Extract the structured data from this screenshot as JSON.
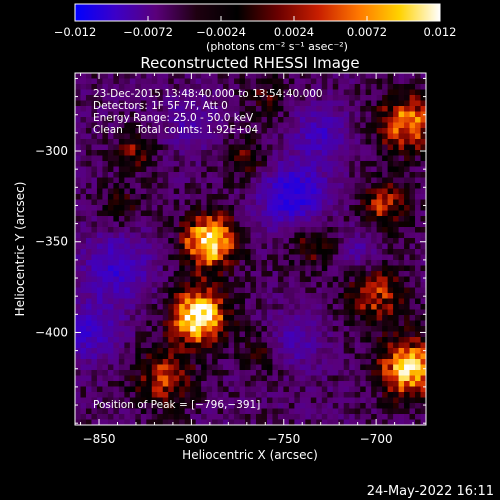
{
  "chart_data": {
    "type": "heatmap",
    "title": "Reconstructed RHESSI Image",
    "xlabel": "Heliocentric X (arcsec)",
    "ylabel": "Heliocentric Y (arcsec)",
    "xlim": [
      -863,
      -673
    ],
    "ylim": [
      -451,
      -257
    ],
    "xticks": [
      -850,
      -800,
      -750,
      -700
    ],
    "xtick_labels": [
      "−850",
      "−800",
      "−750",
      "−700"
    ],
    "yticks": [
      -300,
      -350,
      -400
    ],
    "ytick_labels": [
      "−300",
      "−350",
      "−400"
    ],
    "colorbar": {
      "range": [
        -0.012,
        0.012
      ],
      "ticks": [
        -0.012,
        -0.0072,
        -0.0024,
        0.0024,
        0.0072,
        0.012
      ],
      "tick_labels": [
        "−0.012",
        "−0.0072",
        "−0.0024",
        "0.0024",
        "0.0072",
        "0.012"
      ],
      "unit_label": "(photons cm⁻² s⁻¹ asec⁻²)",
      "colormap": [
        "#0000ff",
        "#3c00c8",
        "#5a007a",
        "#1e0010",
        "#000000",
        "#6a0000",
        "#c81e00",
        "#ff7800",
        "#ffd200",
        "#ffffff"
      ]
    },
    "annotations": [
      "23-Dec-2015 13:48:40.000 to 13:54:40.000",
      "Detectors: 1F 5F 7F, Att 0",
      "Energy Range: 25.0 - 50.0 keV",
      "Clean    Total counts: 1.92E+04"
    ],
    "peak_label": "Position of Peak = [−796,−391]",
    "peak": [
      -796,
      -391
    ],
    "sources": [
      {
        "x": -790,
        "y": -350,
        "sigma": 11,
        "amp": 1.0
      },
      {
        "x": -796,
        "y": -391,
        "sigma": 11,
        "amp": 1.05
      },
      {
        "x": -815,
        "y": -425,
        "sigma": 12,
        "amp": 0.55
      },
      {
        "x": -830,
        "y": -300,
        "sigma": 8,
        "amp": 0.45
      },
      {
        "x": -838,
        "y": -330,
        "sigma": 8,
        "amp": 0.35
      },
      {
        "x": -770,
        "y": -305,
        "sigma": 9,
        "amp": 0.4
      },
      {
        "x": -683,
        "y": -285,
        "sigma": 12,
        "amp": 0.75
      },
      {
        "x": -695,
        "y": -330,
        "sigma": 10,
        "amp": 0.55
      },
      {
        "x": -700,
        "y": -380,
        "sigma": 12,
        "amp": 0.55
      },
      {
        "x": -682,
        "y": -420,
        "sigma": 12,
        "amp": 0.9
      },
      {
        "x": -735,
        "y": -350,
        "sigma": 10,
        "amp": 0.45
      },
      {
        "x": -760,
        "y": -410,
        "sigma": 9,
        "amp": 0.35
      },
      {
        "x": -760,
        "y": -270,
        "sigma": 9,
        "amp": 0.3
      }
    ],
    "wells": [
      {
        "x": -745,
        "y": -325,
        "sigma": 13,
        "amp": 0.8
      },
      {
        "x": -730,
        "y": -290,
        "sigma": 10,
        "amp": 0.5
      },
      {
        "x": -840,
        "y": -365,
        "sigma": 13,
        "amp": 0.6
      },
      {
        "x": -855,
        "y": -400,
        "sigma": 11,
        "amp": 0.55
      },
      {
        "x": -745,
        "y": -405,
        "sigma": 10,
        "amp": 0.45
      },
      {
        "x": -800,
        "y": -285,
        "sigma": 10,
        "amp": 0.35
      },
      {
        "x": -710,
        "y": -355,
        "sigma": 8,
        "amp": 0.35
      }
    ]
  },
  "footer": {
    "date": "24-May-2022 16:11"
  }
}
